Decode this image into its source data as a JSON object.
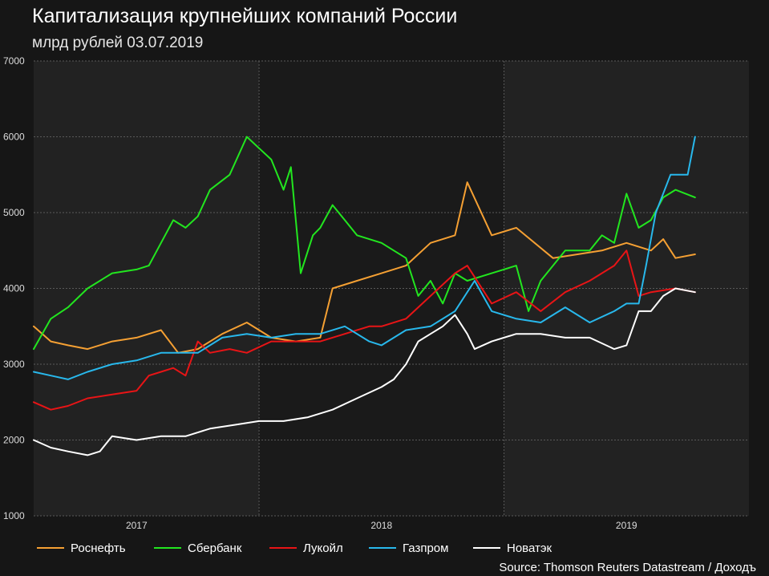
{
  "header": {
    "title": "Капитализация крупнейших компаний России",
    "subtitle": "млрд рублей 03.07.2019"
  },
  "footer": {
    "source": "Source: Thomson Reuters Datastream / Доходъ"
  },
  "colors": {
    "background": "#161616",
    "plot_band_light": "#222222",
    "plot_band_dark": "#1a1a1a",
    "grid": "#5a5a5a",
    "Роснефть": "#f5a033",
    "Сбербанк": "#22e61f",
    "Лукойл": "#e81416",
    "Газпром": "#28b8ec",
    "Новатэк": "#ffffff"
  },
  "chart_data": {
    "type": "line",
    "title": "Капитализация крупнейших компаний России",
    "subtitle": "млрд рублей 03.07.2019",
    "xlabel": "",
    "ylabel": "",
    "xlim": [
      2016.58,
      2019.5
    ],
    "ylim": [
      1000,
      7000
    ],
    "y_ticks": [
      1000,
      2000,
      3000,
      4000,
      5000,
      6000,
      7000
    ],
    "x_ticks": [
      {
        "label": "2017",
        "x": 2017.0
      },
      {
        "label": "2018",
        "x": 2018.0
      },
      {
        "label": "2019",
        "x": 2019.0
      }
    ],
    "grid": true,
    "legend_position": "bottom",
    "series": [
      {
        "name": "Роснефть",
        "color": "#f5a033",
        "x": [
          2016.58,
          2016.65,
          2016.72,
          2016.8,
          2016.9,
          2017.0,
          2017.1,
          2017.17,
          2017.25,
          2017.35,
          2017.45,
          2017.55,
          2017.65,
          2017.75,
          2017.8,
          2017.9,
          2018.0,
          2018.1,
          2018.2,
          2018.3,
          2018.35,
          2018.45,
          2018.55,
          2018.7,
          2018.8,
          2018.9,
          2019.0,
          2019.1,
          2019.15,
          2019.2,
          2019.28
        ],
        "values": [
          3500,
          3300,
          3250,
          3200,
          3300,
          3350,
          3450,
          3150,
          3200,
          3400,
          3550,
          3350,
          3300,
          3350,
          4000,
          4100,
          4200,
          4300,
          4600,
          4700,
          5400,
          4700,
          4800,
          4400,
          4450,
          4500,
          4600,
          4500,
          4650,
          4400,
          4450
        ]
      },
      {
        "name": "Сбербанк",
        "color": "#22e61f",
        "x": [
          2016.58,
          2016.65,
          2016.72,
          2016.8,
          2016.9,
          2017.0,
          2017.05,
          2017.1,
          2017.15,
          2017.2,
          2017.25,
          2017.3,
          2017.38,
          2017.45,
          2017.5,
          2017.55,
          2017.6,
          2017.63,
          2017.67,
          2017.72,
          2017.75,
          2017.8,
          2017.85,
          2017.9,
          2018.0,
          2018.05,
          2018.1,
          2018.15,
          2018.2,
          2018.25,
          2018.3,
          2018.35,
          2018.45,
          2018.55,
          2018.6,
          2018.65,
          2018.75,
          2018.85,
          2018.9,
          2018.95,
          2019.0,
          2019.05,
          2019.1,
          2019.15,
          2019.2,
          2019.28
        ],
        "values": [
          3200,
          3600,
          3750,
          4000,
          4200,
          4250,
          4300,
          4600,
          4900,
          4800,
          4950,
          5300,
          5500,
          6000,
          5850,
          5700,
          5300,
          5600,
          4200,
          4700,
          4800,
          5100,
          4900,
          4700,
          4600,
          4500,
          4400,
          3900,
          4100,
          3800,
          4200,
          4100,
          4200,
          4300,
          3700,
          4100,
          4500,
          4500,
          4700,
          4600,
          5250,
          4800,
          4900,
          5200,
          5300,
          5200
        ]
      },
      {
        "name": "Лукойл",
        "color": "#e81416",
        "x": [
          2016.58,
          2016.65,
          2016.72,
          2016.8,
          2016.9,
          2017.0,
          2017.05,
          2017.1,
          2017.15,
          2017.2,
          2017.25,
          2017.3,
          2017.38,
          2017.45,
          2017.55,
          2017.65,
          2017.75,
          2017.85,
          2017.95,
          2018.0,
          2018.1,
          2018.2,
          2018.3,
          2018.35,
          2018.45,
          2018.55,
          2018.65,
          2018.75,
          2018.85,
          2018.95,
          2019.0,
          2019.05,
          2019.1,
          2019.2,
          2019.28
        ],
        "values": [
          2500,
          2400,
          2450,
          2550,
          2600,
          2650,
          2850,
          2900,
          2950,
          2850,
          3300,
          3150,
          3200,
          3150,
          3300,
          3300,
          3300,
          3400,
          3500,
          3500,
          3600,
          3900,
          4200,
          4300,
          3800,
          3950,
          3700,
          3950,
          4100,
          4300,
          4500,
          3900,
          3950,
          4000,
          3950
        ]
      },
      {
        "name": "Газпром",
        "color": "#28b8ec",
        "x": [
          2016.58,
          2016.65,
          2016.72,
          2016.8,
          2016.9,
          2017.0,
          2017.1,
          2017.17,
          2017.25,
          2017.35,
          2017.45,
          2017.55,
          2017.65,
          2017.75,
          2017.85,
          2017.95,
          2018.0,
          2018.1,
          2018.2,
          2018.3,
          2018.38,
          2018.45,
          2018.55,
          2018.65,
          2018.75,
          2018.85,
          2018.95,
          2019.0,
          2019.05,
          2019.08,
          2019.12,
          2019.18,
          2019.25,
          2019.28
        ],
        "values": [
          2900,
          2850,
          2800,
          2900,
          3000,
          3050,
          3150,
          3150,
          3150,
          3350,
          3400,
          3350,
          3400,
          3400,
          3500,
          3300,
          3250,
          3450,
          3500,
          3700,
          4100,
          3700,
          3600,
          3550,
          3750,
          3550,
          3700,
          3800,
          3800,
          4300,
          5000,
          5500,
          5500,
          6000
        ]
      },
      {
        "name": "Новатэк",
        "color": "#ffffff",
        "x": [
          2016.58,
          2016.65,
          2016.72,
          2016.8,
          2016.85,
          2016.9,
          2017.0,
          2017.1,
          2017.2,
          2017.3,
          2017.4,
          2017.5,
          2017.6,
          2017.7,
          2017.8,
          2017.9,
          2018.0,
          2018.05,
          2018.1,
          2018.15,
          2018.2,
          2018.25,
          2018.3,
          2018.35,
          2018.38,
          2018.45,
          2018.55,
          2018.65,
          2018.75,
          2018.85,
          2018.95,
          2019.0,
          2019.05,
          2019.1,
          2019.15,
          2019.2,
          2019.28
        ],
        "values": [
          2000,
          1900,
          1850,
          1800,
          1850,
          2050,
          2000,
          2050,
          2050,
          2150,
          2200,
          2250,
          2250,
          2300,
          2400,
          2550,
          2700,
          2800,
          3000,
          3300,
          3400,
          3500,
          3650,
          3400,
          3200,
          3300,
          3400,
          3400,
          3350,
          3350,
          3200,
          3250,
          3700,
          3700,
          3900,
          4000,
          3950
        ]
      }
    ]
  }
}
